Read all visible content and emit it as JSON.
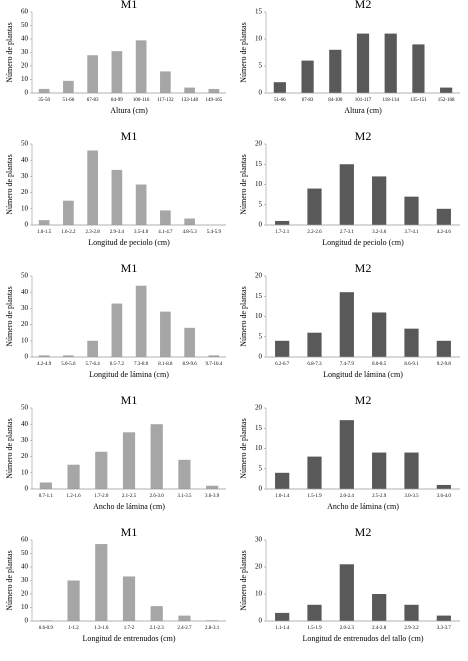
{
  "chart_data": [
    {
      "type": "bar",
      "title": "M1",
      "y_label": "Número de plantas",
      "x_label": "Altura (cm)",
      "color": "#a6a6a6",
      "categories": [
        "35-50",
        "51-66",
        "67-83",
        "84-99",
        "100-116",
        "117-132",
        "133-148",
        "149-165"
      ],
      "values": [
        3,
        9,
        28,
        31,
        39,
        16,
        4,
        3
      ],
      "ylim": [
        0,
        60
      ],
      "yticks": [
        0,
        10,
        20,
        30,
        40,
        50,
        60
      ]
    },
    {
      "type": "bar",
      "title": "M2",
      "y_label": "Número de plantas",
      "x_label": "Altura (cm)",
      "color": "#595959",
      "categories": [
        "51-66",
        "67-83",
        "84-100",
        "101-117",
        "118-134",
        "135-151",
        "152-168"
      ],
      "values": [
        2,
        6,
        8,
        11,
        11,
        9,
        1
      ],
      "ylim": [
        0,
        15
      ],
      "yticks": [
        0,
        5,
        10,
        15
      ]
    },
    {
      "type": "bar",
      "title": "M1",
      "y_label": "Número de plantas",
      "x_label": "Longitud de peciolo (cm)",
      "color": "#a6a6a6",
      "categories": [
        "1.0-1.5",
        "1.6-2.2",
        "2.3-2.8",
        "2.9-3.4",
        "3.5-4.0",
        "4.1-4.7",
        "4.8-5.3",
        "5.4-5.9"
      ],
      "values": [
        3,
        15,
        46,
        34,
        25,
        9,
        4,
        0
      ],
      "ylim": [
        0,
        50
      ],
      "yticks": [
        0,
        10,
        20,
        30,
        40,
        50
      ]
    },
    {
      "type": "bar",
      "title": "M2",
      "y_label": "Número de plantas",
      "x_label": "Longitud de peciolo (cm)",
      "color": "#595959",
      "categories": [
        "1.7-2.1",
        "2.2-2.6",
        "2.7-3.1",
        "3.2-3.6",
        "3.7-4.1",
        "4.2-4.6"
      ],
      "values": [
        1,
        9,
        15,
        12,
        7,
        4
      ],
      "ylim": [
        0,
        20
      ],
      "yticks": [
        0,
        5,
        10,
        15,
        20
      ]
    },
    {
      "type": "bar",
      "title": "M1",
      "y_label": "Número de plantas",
      "x_label": "Longitud de lámina (cm)",
      "color": "#a6a6a6",
      "categories": [
        "4.2-4.9",
        "5.0-5.6",
        "5.7-6.4",
        "6.5-7.2",
        "7.3-8.0",
        "8.1-8.8",
        "8.9-9.6",
        "9.7-10.4"
      ],
      "values": [
        1,
        1,
        10,
        33,
        44,
        28,
        18,
        1
      ],
      "ylim": [
        0,
        50
      ],
      "yticks": [
        0,
        10,
        20,
        30,
        40,
        50
      ]
    },
    {
      "type": "bar",
      "title": "M2",
      "y_label": "Número de plantas",
      "x_label": "Longitud de lámina (cm)",
      "color": "#595959",
      "categories": [
        "6.2-6.7",
        "6.8-7.3",
        "7.4-7.9",
        "8.0-8.5",
        "8.6-9.1",
        "9.2-9.8"
      ],
      "values": [
        4,
        6,
        16,
        11,
        7,
        4
      ],
      "ylim": [
        0,
        20
      ],
      "yticks": [
        0,
        5,
        10,
        15,
        20
      ]
    },
    {
      "type": "bar",
      "title": "M1",
      "y_label": "Número de plantas",
      "x_label": "Ancho de lámina (cm)",
      "color": "#a6a6a6",
      "categories": [
        "0.7-1.1",
        "1.2-1.6",
        "1.7-2.0",
        "2.1-2.5",
        "2.6-3.0",
        "3.1-3.5",
        "3.6-3.9"
      ],
      "values": [
        4,
        15,
        23,
        35,
        40,
        18,
        2
      ],
      "ylim": [
        0,
        50
      ],
      "yticks": [
        0,
        10,
        20,
        30,
        40,
        50
      ]
    },
    {
      "type": "bar",
      "title": "M2",
      "y_label": "Número de plantas",
      "x_label": "Ancho de lámina (cm)",
      "color": "#595959",
      "categories": [
        "1.0-1.4",
        "1.5-1.9",
        "2.0-2.4",
        "2.5-2.9",
        "3.0-3.5",
        "3.6-4.0"
      ],
      "values": [
        4,
        8,
        17,
        9,
        9,
        1
      ],
      "ylim": [
        0,
        20
      ],
      "yticks": [
        0,
        5,
        10,
        15,
        20
      ]
    },
    {
      "type": "bar",
      "title": "M1",
      "y_label": "Número de plantas",
      "x_label": "Longitud de entrenudos (cm)",
      "color": "#a6a6a6",
      "categories": [
        "0.6-0.9",
        "1-1.2",
        "1.3-1.6",
        "1.7-2",
        "2.1-2.3",
        "2.4-2.7",
        "2.8-3.1"
      ],
      "values": [
        0.5,
        30,
        57,
        33,
        11,
        4,
        0.5
      ],
      "ylim": [
        0,
        60
      ],
      "yticks": [
        0,
        10,
        20,
        30,
        40,
        50,
        60
      ]
    },
    {
      "type": "bar",
      "title": "M2",
      "y_label": "Número de plantas",
      "x_label": "Longitud de entrenudos del tallo (cm)",
      "color": "#595959",
      "categories": [
        "1.1-1.4",
        "1.5-1.9",
        "2.0-2.3",
        "2.4-2.8",
        "2.9-3.2",
        "3.3-3.7"
      ],
      "values": [
        3,
        6,
        21,
        10,
        6,
        2
      ],
      "ylim": [
        0,
        30
      ],
      "yticks": [
        0,
        10,
        20,
        30
      ]
    }
  ]
}
